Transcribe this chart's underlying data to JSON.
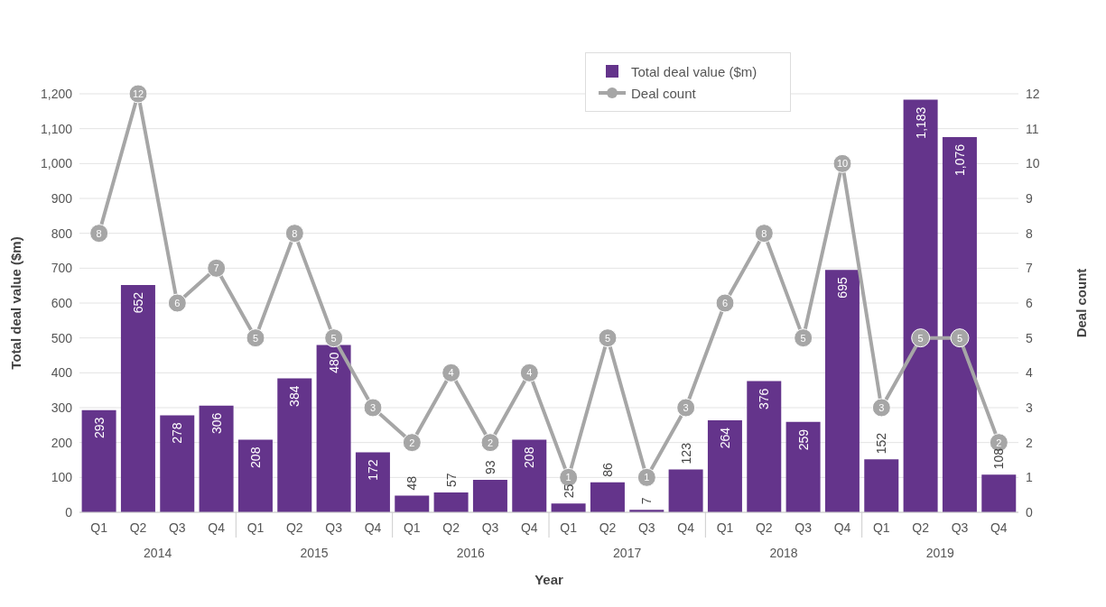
{
  "chart_data": {
    "type": "bar",
    "xlabel": "Year",
    "ylabel": "Total deal value ($m)",
    "y2label": "Deal count",
    "categories": [
      "Q1",
      "Q2",
      "Q3",
      "Q4",
      "Q1",
      "Q2",
      "Q3",
      "Q4",
      "Q1",
      "Q2",
      "Q3",
      "Q4",
      "Q1",
      "Q2",
      "Q3",
      "Q4",
      "Q1",
      "Q2",
      "Q3",
      "Q4",
      "Q1",
      "Q2",
      "Q3",
      "Q4"
    ],
    "annotations": [
      "2014",
      "2015",
      "2016",
      "2017",
      "2018",
      "2019"
    ],
    "series": [
      {
        "name": "Total deal value ($m)",
        "color": "#64348b",
        "values": [
          293,
          652,
          278,
          306,
          208,
          384,
          480,
          172,
          48,
          57,
          93,
          208,
          25,
          86,
          7,
          123,
          264,
          376,
          259,
          695,
          152,
          1183,
          1076,
          108
        ],
        "value_labels": [
          "293",
          "652",
          "278",
          "306",
          "208",
          "384",
          "480",
          "172",
          "48",
          "57",
          "93",
          "208",
          "25",
          "86",
          "7",
          "123",
          "264",
          "376",
          "259",
          "695",
          "152",
          "1,183",
          "1,076",
          "108"
        ]
      },
      {
        "name": "Deal count",
        "type": "line",
        "axis": "y2",
        "color": "#a6a6a6",
        "marker": "circle",
        "values": [
          8,
          12,
          6,
          7,
          5,
          8,
          5,
          3,
          2,
          4,
          2,
          4,
          1,
          5,
          1,
          3,
          6,
          8,
          5,
          10,
          3,
          5,
          5,
          2
        ]
      }
    ],
    "ylim": [
      0,
      1200
    ],
    "yticks": [
      0,
      100,
      200,
      300,
      400,
      500,
      600,
      700,
      800,
      900,
      {
        "value": 1000,
        "label": "1,000"
      },
      {
        "value": 1100,
        "label": "1,100"
      },
      {
        "value": 1200,
        "label": "1,200"
      }
    ],
    "y2lim": [
      0,
      12
    ],
    "y2ticks": [
      0,
      1,
      2,
      3,
      4,
      5,
      6,
      7,
      8,
      9,
      10,
      11,
      12
    ],
    "grid": "y",
    "legend": "top",
    "data_labels": true
  }
}
